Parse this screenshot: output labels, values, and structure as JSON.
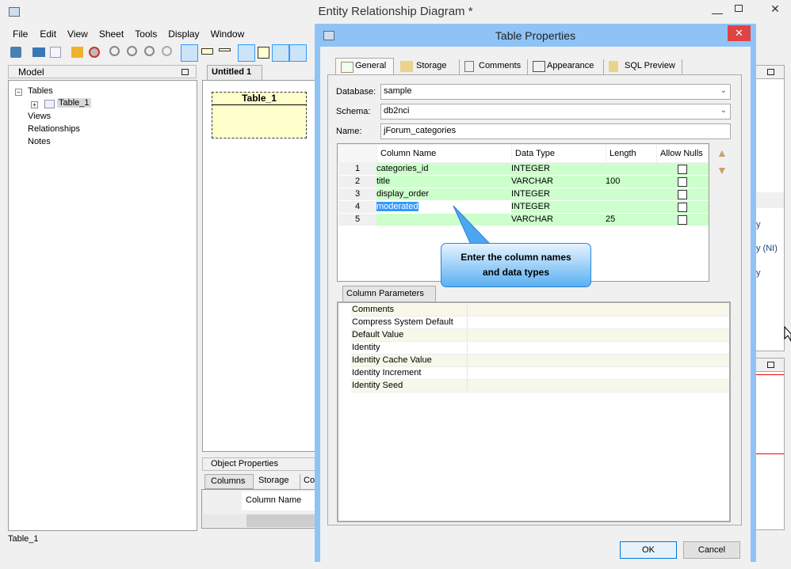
{
  "window": {
    "title": "Entity Relationship Diagram *"
  },
  "menu": [
    "File",
    "Edit",
    "View",
    "Sheet",
    "Tools",
    "Display",
    "Window"
  ],
  "model_panel": {
    "title": "Model",
    "tree": {
      "root": "Tables",
      "child": "Table_1",
      "others": [
        "Views",
        "Relationships",
        "Notes"
      ]
    }
  },
  "canvas": {
    "tab": "Untitled 1",
    "entity_name": "Table_1"
  },
  "object_properties": {
    "title": "Object Properties",
    "tabs": [
      "Columns",
      "Storage",
      "Co"
    ],
    "column_header": "Column Name"
  },
  "status_bar": {
    "text": "Table_1"
  },
  "right_panel": {
    "items": [
      "y",
      "y (NI)",
      "y"
    ]
  },
  "dialog": {
    "title": "Table Properties",
    "tabs": [
      "General",
      "Storage",
      "Comments",
      "Appearance",
      "SQL Preview"
    ],
    "database_label": "Database:",
    "database_value": "sample",
    "schema_label": "Schema:",
    "schema_value": "db2nci",
    "name_label": "Name:",
    "name_value": "jForum_categories",
    "grid": {
      "headers": [
        "Column Name",
        "Data Type",
        "Length",
        "Allow Nulls"
      ],
      "rows": [
        {
          "num": "1",
          "name": "categories_id",
          "type": "INTEGER",
          "length": "",
          "nulls": false
        },
        {
          "num": "2",
          "name": "title",
          "type": "VARCHAR",
          "length": "100",
          "nulls": false
        },
        {
          "num": "3",
          "name": "display_order",
          "type": "INTEGER",
          "length": "",
          "nulls": false
        },
        {
          "num": "4",
          "name": "moderated",
          "type": "INTEGER",
          "length": "",
          "nulls": false
        },
        {
          "num": "5",
          "name": "",
          "type": "VARCHAR",
          "length": "25",
          "nulls": false
        }
      ]
    },
    "callout": {
      "line1": "Enter the column names",
      "line2": "and data types"
    },
    "params_tab": "Column Parameters",
    "params": [
      "Comments",
      "Compress System Default",
      "Default Value",
      "Identity",
      "Identity Cache Value",
      "Identity Increment",
      "Identity Seed"
    ],
    "ok": "OK",
    "cancel": "Cancel"
  },
  "colors": {
    "row_green": "#ccffcc",
    "selection": "#3399ff",
    "dialog_border": "#8fc3f5",
    "close_red": "#e04343",
    "callout": "#4da6f0"
  }
}
